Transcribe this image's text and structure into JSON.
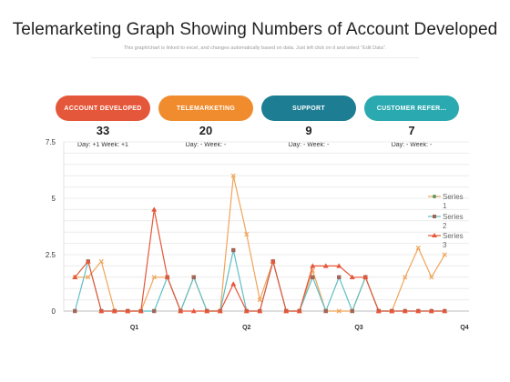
{
  "header": {
    "title": "Telemarketing Graph Showing Numbers of Account Developed",
    "subtitle": "This graph/chart is linked to excel, and changes automatically  based on data. Just left click on it and select \"Edit Data\"."
  },
  "kpis": [
    {
      "label": "ACCOUNT DEVELOPED",
      "value": "33",
      "change": "Day: +1 Week: +1",
      "color": "#e5573a"
    },
    {
      "label": "TELEMARKETING",
      "value": "20",
      "change": "Day: - Week: -",
      "color": "#f08c2e"
    },
    {
      "label": "SUPPORT",
      "value": "9",
      "change": "Day: - Week: -",
      "color": "#1d7d93"
    },
    {
      "label": "CUSTOMER REFER...",
      "value": "7",
      "change": "Day: - Week: -",
      "color": "#2aaab0"
    }
  ],
  "chart_data": {
    "type": "line",
    "title": "",
    "xlabel": "",
    "ylabel": "",
    "ylim": [
      0,
      7.5
    ],
    "yticks": [
      "0",
      "2.5",
      "5",
      "7.5"
    ],
    "xticks": [
      "Q1",
      "Q2",
      "Q3",
      "Q4"
    ],
    "xtick_positions": [
      4.5,
      13,
      21.5,
      29.5
    ],
    "grid": true,
    "legend_position": "right",
    "x": [
      0,
      1,
      2,
      3,
      4,
      5,
      6,
      7,
      8,
      9,
      10,
      11,
      12,
      13,
      14,
      15,
      16,
      17,
      18,
      19,
      20,
      21,
      22,
      23,
      24,
      25,
      26,
      27,
      28,
      29
    ],
    "series": [
      {
        "name": "Series 1",
        "color": "#f0a45a",
        "marker": "x",
        "values": [
          1.5,
          1.5,
          2.2,
          0,
          0,
          0,
          1.5,
          1.5,
          0,
          1.5,
          0,
          0,
          6,
          3.4,
          0.5,
          2.2,
          0,
          0,
          1.8,
          0,
          0,
          0,
          1.5,
          0,
          0,
          1.5,
          2.8,
          1.5,
          2.5,
          null
        ]
      },
      {
        "name": "Series 2",
        "color": "#5fbfc4",
        "marker": "square",
        "values": [
          0,
          2.2,
          0,
          0,
          0,
          0,
          0,
          1.5,
          0,
          1.5,
          0,
          0,
          2.7,
          0,
          0,
          2.2,
          0,
          0,
          1.5,
          0,
          1.5,
          0,
          1.5,
          0,
          0,
          0,
          0,
          0,
          0,
          null
        ]
      },
      {
        "name": "Series 3",
        "color": "#e5573a",
        "marker": "triangle",
        "values": [
          1.5,
          2.2,
          0,
          0,
          0,
          0,
          4.5,
          1.5,
          0,
          0,
          0,
          0,
          1.2,
          0,
          0,
          2.2,
          0,
          0,
          2.0,
          2.0,
          2.0,
          1.5,
          1.5,
          0,
          0,
          0,
          0,
          0,
          0,
          null
        ]
      }
    ]
  }
}
